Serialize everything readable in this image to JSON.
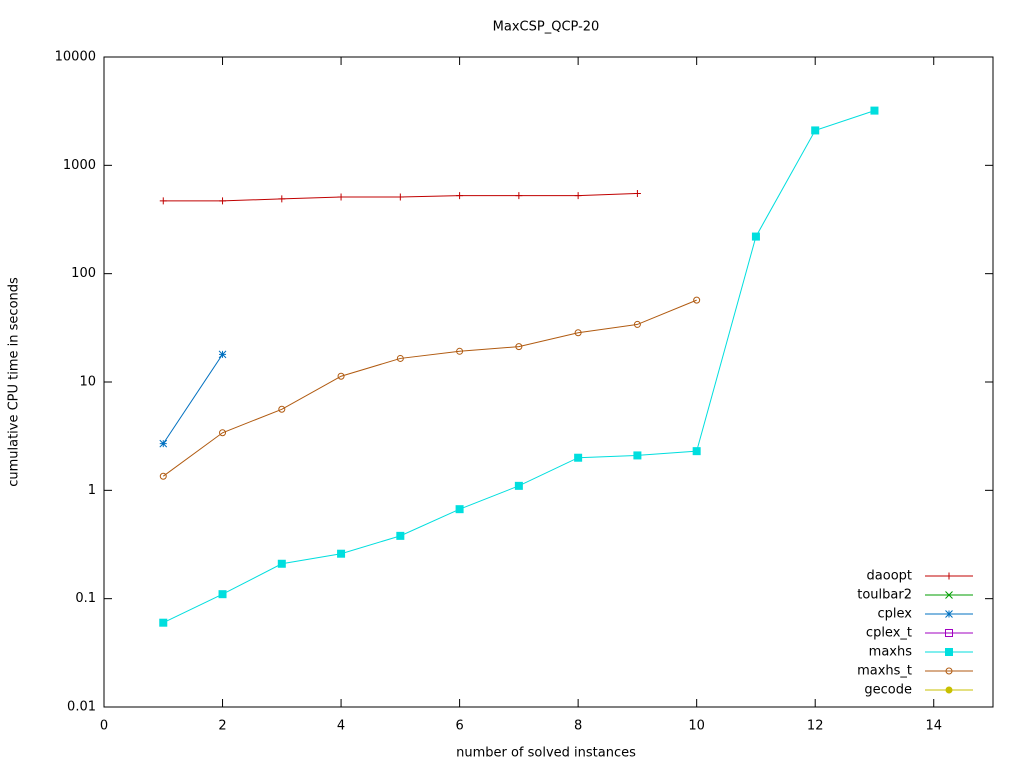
{
  "chart_data": {
    "type": "line",
    "title": "MaxCSP_QCP-20",
    "xlabel": "number of solved instances",
    "ylabel": "cumulative CPU time in seconds",
    "xlim": [
      0,
      15
    ],
    "xticks": [
      0,
      2,
      4,
      6,
      8,
      10,
      12,
      14
    ],
    "ylim": [
      0.01,
      10000
    ],
    "yticks": [
      10000,
      1000,
      100,
      10,
      1,
      0.1,
      0.01
    ],
    "ylog": true,
    "legend": "bottom-right",
    "series": [
      {
        "name": "daoopt",
        "color": "#c00000",
        "marker": "plus",
        "x": [
          1,
          2,
          3,
          4,
          5,
          6,
          7,
          8,
          9
        ],
        "values": [
          470,
          470,
          490,
          510,
          510,
          525,
          525,
          525,
          550
        ]
      },
      {
        "name": "toulbar2",
        "color": "#009e00",
        "marker": "cross",
        "x": [],
        "values": []
      },
      {
        "name": "cplex",
        "color": "#0070c0",
        "marker": "star",
        "x": [
          1,
          2
        ],
        "values": [
          2.7,
          18
        ]
      },
      {
        "name": "cplex_t",
        "color": "#a000c0",
        "marker": "open-square",
        "x": [],
        "values": []
      },
      {
        "name": "maxhs",
        "color": "#00dede",
        "marker": "square",
        "x": [
          1,
          2,
          3,
          4,
          5,
          6,
          7,
          8,
          9,
          10,
          11,
          12,
          13
        ],
        "values": [
          0.06,
          0.11,
          0.21,
          0.26,
          0.38,
          0.67,
          1.1,
          2.0,
          2.1,
          2.3,
          220,
          2100,
          3200
        ]
      },
      {
        "name": "maxhs_t",
        "color": "#b05a10",
        "marker": "open-circle",
        "x": [
          1,
          2,
          3,
          4,
          5,
          6,
          7,
          8,
          9,
          10
        ],
        "values": [
          1.35,
          3.4,
          5.6,
          11.3,
          16.5,
          19.2,
          21.2,
          28.5,
          34,
          57
        ]
      },
      {
        "name": "gecode",
        "color": "#c8c000",
        "marker": "circle",
        "x": [],
        "values": []
      }
    ]
  }
}
